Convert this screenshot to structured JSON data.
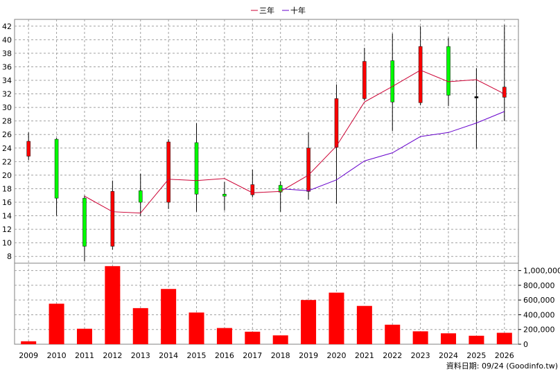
{
  "chart_data": {
    "type": "candlestick",
    "legend": [
      {
        "name": "三年",
        "color": "#cc0033"
      },
      {
        "name": "十年",
        "color": "#6600cc"
      }
    ],
    "footer": "資料日期: 09/24  (Goodinfo.tw)",
    "price_axis": {
      "ylim": [
        7,
        43
      ],
      "ticks": [
        8,
        10,
        12,
        14,
        16,
        18,
        20,
        22,
        24,
        26,
        28,
        30,
        32,
        34,
        36,
        38,
        40,
        42
      ]
    },
    "volume_axis": {
      "ylim": [
        0,
        1100000
      ],
      "ticks": [
        0,
        200000,
        400000,
        600000,
        800000,
        1000000
      ],
      "tick_labels": [
        "0",
        "200,000",
        "400,000",
        "600,000",
        "800,000",
        "1,000,000"
      ]
    },
    "grid": true,
    "years": [
      "2009",
      "2010",
      "2011",
      "2012",
      "2013",
      "2014",
      "2015",
      "2016",
      "2017",
      "2018",
      "2019",
      "2020",
      "2021",
      "2022",
      "2023",
      "2024",
      "2025",
      "2026"
    ],
    "candles": [
      {
        "open": 25.0,
        "close": 22.8,
        "high": 26.3,
        "low": 22.2
      },
      {
        "open": 16.6,
        "close": 25.3,
        "high": 25.5,
        "low": 14.0
      },
      {
        "open": 9.5,
        "close": 16.6,
        "high": 17.0,
        "low": 7.3
      },
      {
        "open": 17.6,
        "close": 9.5,
        "high": 19.2,
        "low": 9.0
      },
      {
        "open": 16.0,
        "close": 17.7,
        "high": 20.2,
        "low": 14.0
      },
      {
        "open": 24.9,
        "close": 16.0,
        "high": 25.3,
        "low": 15.0
      },
      {
        "open": 17.2,
        "close": 24.8,
        "high": 27.7,
        "low": 14.6
      },
      {
        "open": 16.9,
        "close": 17.2,
        "high": 19.0,
        "low": 14.8
      },
      {
        "open": 18.6,
        "close": 17.1,
        "high": 20.8,
        "low": 16.7
      },
      {
        "open": 17.5,
        "close": 18.5,
        "high": 19.1,
        "low": 14.6
      },
      {
        "open": 24.0,
        "close": 17.6,
        "high": 26.3,
        "low": 16.4
      },
      {
        "open": 31.3,
        "close": 24.1,
        "high": 33.4,
        "low": 15.8
      },
      {
        "open": 36.8,
        "close": 31.3,
        "high": 38.8,
        "low": 31.0
      },
      {
        "open": 30.8,
        "close": 36.9,
        "high": 40.9,
        "low": 26.5
      },
      {
        "open": 39.0,
        "close": 30.7,
        "high": 42.0,
        "low": 30.3
      },
      {
        "open": 31.8,
        "close": 39.0,
        "high": 40.3,
        "low": 30.2
      },
      {
        "open": 31.6,
        "close": 31.6,
        "high": 35.8,
        "low": 23.9
      },
      {
        "open": 33.0,
        "close": 31.5,
        "high": 42.2,
        "low": 28.0
      }
    ],
    "volume": [
      40000,
      550000,
      210000,
      1060000,
      490000,
      750000,
      430000,
      220000,
      170000,
      120000,
      600000,
      700000,
      520000,
      265000,
      175000,
      148000,
      115000,
      155000
    ],
    "series": [
      {
        "name": "三年",
        "values": [
          null,
          null,
          16.9,
          14.6,
          14.4,
          19.4,
          19.2,
          19.5,
          17.4,
          17.6,
          20.0,
          24.3,
          30.8,
          33.1,
          35.5,
          33.8,
          34.1,
          32.0
        ]
      },
      {
        "name": "十年",
        "values": [
          null,
          null,
          null,
          null,
          null,
          null,
          null,
          null,
          null,
          18.0,
          17.7,
          19.3,
          22.1,
          23.3,
          25.7,
          26.3,
          27.7,
          29.4
        ]
      }
    ]
  }
}
